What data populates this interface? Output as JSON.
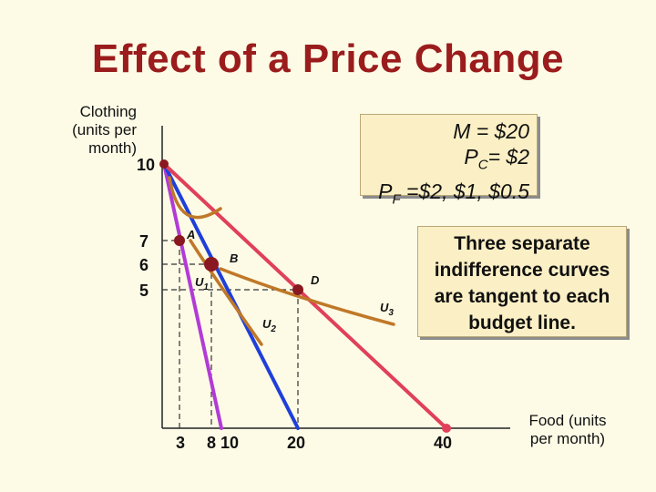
{
  "title": "Effect of a Price Change",
  "ylabel": "Clothing\n(units per\nmonth)",
  "xlabel": "Food (units\nper month)",
  "info_box": {
    "line1": "M = $20",
    "line2_prefix": "P",
    "line2_sub": "C",
    "line2_rest": "= $2",
    "line3_prefix": "P",
    "line3_sub": "F",
    "line3_rest": " =$2, $1, $0.5"
  },
  "note": "Three separate indifference curves are tangent to each budget line.",
  "colors": {
    "title": "#9b1c1c",
    "budget_2": "#b23bd6",
    "budget_1": "#1f3fd9",
    "budget_05": "#e0405a",
    "indifference": "#c07828",
    "point": "#8a1820",
    "dashed": "#333333"
  },
  "chart_data": {
    "type": "line",
    "x_ticks": [
      3,
      8,
      10,
      20,
      40
    ],
    "y_ticks": [
      10,
      7,
      6,
      5
    ],
    "budget_lines": [
      {
        "price_food": "$2",
        "x_intercept": 10,
        "y_intercept": 10
      },
      {
        "price_food": "$1",
        "x_intercept": 20,
        "y_intercept": 10
      },
      {
        "price_food": "$0.5",
        "x_intercept": 40,
        "y_intercept": 10
      }
    ],
    "points": [
      {
        "label": "A",
        "x": 3,
        "y": 7
      },
      {
        "label": "B",
        "x": 8,
        "y": 6
      },
      {
        "label": "D",
        "x": 20,
        "y": 5
      }
    ],
    "indifference_curves": [
      {
        "name": "U1",
        "sub": "1"
      },
      {
        "name": "U2",
        "sub": "2"
      },
      {
        "name": "U3",
        "sub": "3"
      }
    ]
  }
}
